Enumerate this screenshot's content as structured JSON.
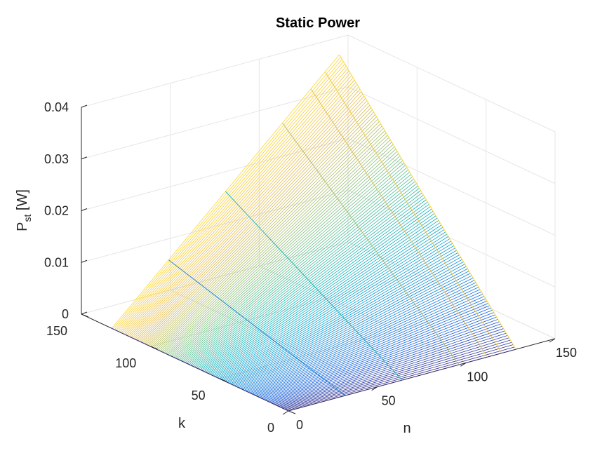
{
  "chart_data": {
    "type": "surface-mesh",
    "title": "Static Power",
    "xlabel": "n",
    "ylabel": "k",
    "zlabel_main": "P",
    "zlabel_sub": "st",
    "zlabel_unit": " [W]",
    "xlim": [
      0,
      150
    ],
    "ylim": [
      0,
      150
    ],
    "zlim": [
      0,
      0.04
    ],
    "xticks": [
      0,
      50,
      100,
      150
    ],
    "yticks": [
      0,
      50,
      100,
      150
    ],
    "zticks": [
      "0",
      "0.01",
      "0.02",
      "0.03",
      "0.04"
    ],
    "surface": {
      "description_formula": "P_st increases linearly with n and k",
      "corner_values": [
        {
          "n": 0,
          "k": 0,
          "P": 0.0
        },
        {
          "n": 128,
          "k": 0,
          "P": 0.0
        },
        {
          "n": 0,
          "k": 128,
          "P": 0.0
        },
        {
          "n": 128,
          "k": 128,
          "P": 0.041
        }
      ]
    },
    "colormap": "parula",
    "grid": true
  }
}
